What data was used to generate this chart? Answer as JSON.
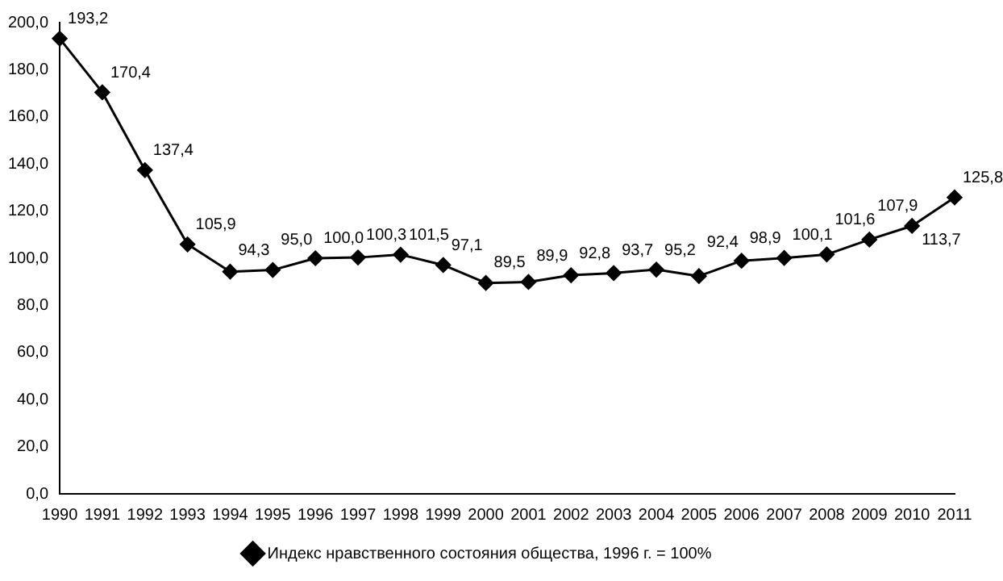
{
  "chart_data": {
    "type": "line",
    "categories": [
      "1990",
      "1991",
      "1992",
      "1993",
      "1994",
      "1995",
      "1996",
      "1997",
      "1998",
      "1999",
      "2000",
      "2001",
      "2002",
      "2003",
      "2004",
      "2005",
      "2006",
      "2007",
      "2008",
      "2009",
      "2010",
      "2011"
    ],
    "series": [
      {
        "name": "Индекс нравственного состояния общества, 1996 г. = 100%",
        "color": "#000000",
        "values": [
          193.2,
          170.4,
          137.4,
          105.9,
          94.3,
          95.0,
          100.0,
          100.3,
          101.5,
          97.1,
          89.5,
          89.9,
          92.8,
          93.7,
          95.2,
          92.4,
          98.9,
          100.1,
          101.6,
          107.9,
          113.7,
          125.8
        ],
        "value_labels": [
          "193,2",
          "170,4",
          "137,4",
          "105,9",
          "94,3",
          "95,0",
          "100,0",
          "100,3",
          "101,5",
          "97,1",
          "89,5",
          "89,9",
          "92,8",
          "93,7",
          "95,2",
          "92,4",
          "98,9",
          "100,1",
          "101,6",
          "107,9",
          "113,7",
          "125,8"
        ]
      }
    ],
    "ylim": [
      0,
      200
    ],
    "yticks": [
      {
        "value": 0,
        "label": "0,0"
      },
      {
        "value": 20,
        "label": "20,0"
      },
      {
        "value": 40,
        "label": "40,0"
      },
      {
        "value": 60,
        "label": "60,0"
      },
      {
        "value": 80,
        "label": "80,0"
      },
      {
        "value": 100,
        "label": "100,0"
      },
      {
        "value": 120,
        "label": "120,0"
      },
      {
        "value": 140,
        "label": "140,0"
      },
      {
        "value": 160,
        "label": "160,0"
      },
      {
        "value": 180,
        "label": "180,0"
      },
      {
        "value": 200,
        "label": "200,0"
      }
    ],
    "grid": false,
    "legend": "bottom",
    "marker": "diamond",
    "line_style": "solid"
  }
}
